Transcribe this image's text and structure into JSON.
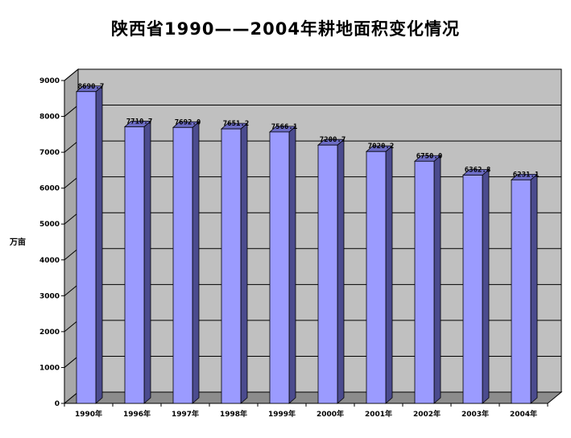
{
  "chart_data": {
    "type": "bar",
    "title": "陕西省1990——2004年耕地面积变化情况",
    "ylabel": "万亩",
    "xlabel": "",
    "categories": [
      "1990年",
      "1996年",
      "1997年",
      "1998年",
      "1999年",
      "2000年",
      "2001年",
      "2002年",
      "2003年",
      "2004年"
    ],
    "values": [
      8690.7,
      7710.7,
      7692.0,
      7651.2,
      7566.1,
      7200.7,
      7020.2,
      6750.0,
      6362.8,
      6231.1
    ],
    "data_labels": [
      "8690.7",
      "7710.7",
      "7692.0",
      "7651.2",
      "7566.1",
      "7200.7",
      "7020.2",
      "6750.0",
      "6362.8",
      "6231.1"
    ],
    "ylim": [
      0,
      9000
    ],
    "yticks": [
      0,
      1000,
      2000,
      3000,
      4000,
      5000,
      6000,
      7000,
      8000,
      9000
    ],
    "grid": true,
    "legend": "none",
    "colors": {
      "bar_front": "#9b9bff",
      "bar_side": "#4b4b8e",
      "bar_top": "#6c6cc4",
      "wall": "#c0c0c0",
      "floor": "#8c8c8c",
      "gridline": "#000000"
    }
  }
}
